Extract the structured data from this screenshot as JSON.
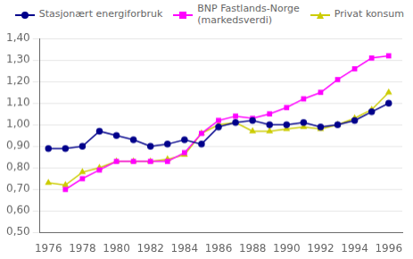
{
  "chart_data": {
    "type": "line",
    "x": [
      1976,
      1977,
      1978,
      1979,
      1980,
      1981,
      1982,
      1983,
      1984,
      1985,
      1986,
      1987,
      1988,
      1989,
      1990,
      1991,
      1992,
      1993,
      1994,
      1995,
      1996
    ],
    "series": [
      {
        "name": "Stasjonært energiforbruk",
        "color": "#00008B",
        "marker": "circle",
        "values": [
          0.89,
          0.89,
          0.9,
          0.97,
          0.95,
          0.93,
          0.9,
          0.91,
          0.93,
          0.91,
          0.99,
          1.01,
          1.02,
          1.0,
          1.0,
          1.01,
          0.99,
          1.0,
          1.02,
          1.06,
          1.1
        ]
      },
      {
        "name": "BNP Fastlands-Norge\n(markedsverdi)",
        "color": "#FF00FF",
        "marker": "square",
        "values": [
          null,
          0.7,
          0.75,
          0.79,
          0.83,
          0.83,
          0.83,
          0.83,
          0.87,
          0.96,
          1.02,
          1.04,
          1.03,
          1.05,
          1.08,
          1.12,
          1.15,
          1.21,
          1.26,
          1.31,
          1.32
        ]
      },
      {
        "name": "Privat konsum",
        "color": "#CCCC00",
        "marker": "triangle",
        "values": [
          0.73,
          0.72,
          0.78,
          0.8,
          0.83,
          0.83,
          0.83,
          0.84,
          0.86,
          0.96,
          1.0,
          1.01,
          0.97,
          0.97,
          0.98,
          0.99,
          0.98,
          1.0,
          1.03,
          1.07,
          1.15
        ]
      }
    ],
    "xlim": [
      1975.5,
      1996.8
    ],
    "xticks": [
      1976,
      1978,
      1980,
      1982,
      1984,
      1986,
      1988,
      1990,
      1992,
      1994,
      1996
    ],
    "ylim": [
      0.5,
      1.4
    ],
    "yticks": [
      {
        "value": 0.5,
        "label": "0,50"
      },
      {
        "value": 0.6,
        "label": "0,60"
      },
      {
        "value": 0.7,
        "label": "0,70"
      },
      {
        "value": 0.8,
        "label": "0,80"
      },
      {
        "value": 0.9,
        "label": "0,90"
      },
      {
        "value": 1.0,
        "label": "1,00"
      },
      {
        "value": 1.1,
        "label": "1,10"
      },
      {
        "value": 1.2,
        "label": "1,20"
      },
      {
        "value": 1.3,
        "label": "1,30"
      },
      {
        "value": 1.4,
        "label": "1,40"
      }
    ],
    "grid": "y",
    "legend": "upper right"
  }
}
